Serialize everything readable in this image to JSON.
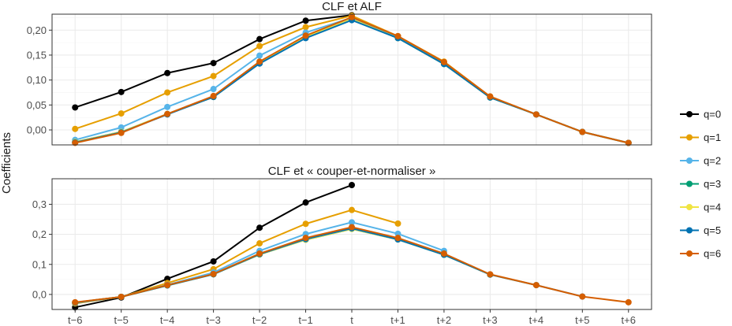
{
  "chart_data": [
    {
      "type": "line",
      "title": "CLF et ALF",
      "xlabel": "",
      "ylabel": "Coefficients",
      "categories": [
        "t−6",
        "t−5",
        "t−4",
        "t−3",
        "t−2",
        "t−1",
        "t",
        "t+1",
        "t+2",
        "t+3",
        "t+4",
        "t+5",
        "t+6"
      ],
      "ylim": [
        -0.03,
        0.232
      ],
      "yticks": [
        0.0,
        0.05,
        0.1,
        0.15,
        0.2
      ],
      "ytick_labels": [
        "0,00",
        "0,05",
        "0,10",
        "0,15",
        "0,20"
      ],
      "grid": true,
      "series": [
        {
          "name": "q=0",
          "values": [
            0.045,
            0.076,
            0.114,
            0.134,
            0.182,
            0.219,
            0.23,
            null,
            null,
            null,
            null,
            null,
            null
          ]
        },
        {
          "name": "q=1",
          "values": [
            0.002,
            0.033,
            0.075,
            0.108,
            0.168,
            0.206,
            0.229,
            0.188,
            0.137,
            0.067,
            0.031,
            -0.004,
            -0.026
          ]
        },
        {
          "name": "q=2",
          "values": [
            -0.02,
            0.005,
            0.046,
            0.082,
            0.149,
            0.195,
            0.225,
            0.185,
            0.133,
            0.066,
            0.031,
            -0.004,
            -0.026
          ]
        },
        {
          "name": "q=3",
          "values": [
            -0.024,
            -0.004,
            0.032,
            0.066,
            0.134,
            0.186,
            0.222,
            0.184,
            0.132,
            0.065,
            0.031,
            -0.004,
            -0.026
          ]
        },
        {
          "name": "q=4",
          "values": [
            -0.024,
            -0.004,
            0.032,
            0.066,
            0.134,
            0.186,
            0.222,
            0.184,
            0.132,
            0.065,
            0.031,
            -0.004,
            -0.026
          ]
        },
        {
          "name": "q=5",
          "values": [
            -0.025,
            -0.005,
            0.031,
            0.066,
            0.133,
            0.184,
            0.22,
            0.184,
            0.132,
            0.065,
            0.031,
            -0.004,
            -0.026
          ]
        },
        {
          "name": "q=6",
          "values": [
            -0.026,
            -0.006,
            0.032,
            0.068,
            0.137,
            0.189,
            0.226,
            0.188,
            0.136,
            0.067,
            0.031,
            -0.004,
            -0.026
          ]
        }
      ]
    },
    {
      "type": "line",
      "title": "CLF et « couper-et-normaliser »",
      "xlabel": "",
      "ylabel": "Coefficients",
      "categories": [
        "t−6",
        "t−5",
        "t−4",
        "t−3",
        "t−2",
        "t−1",
        "t",
        "t+1",
        "t+2",
        "t+3",
        "t+4",
        "t+5",
        "t+6"
      ],
      "ylim": [
        -0.05,
        0.385
      ],
      "yticks": [
        0.0,
        0.1,
        0.2,
        0.3
      ],
      "ytick_labels": [
        "0,0",
        "0,1",
        "0,2",
        "0,3"
      ],
      "grid": true,
      "series": [
        {
          "name": "q=0",
          "values": [
            -0.043,
            -0.01,
            0.052,
            0.11,
            0.222,
            0.306,
            0.364,
            null,
            null,
            null,
            null,
            null,
            null
          ]
        },
        {
          "name": "q=1",
          "values": [
            -0.03,
            -0.008,
            0.038,
            0.084,
            0.17,
            0.235,
            0.281,
            0.236,
            null,
            null,
            null,
            null,
            null
          ]
        },
        {
          "name": "q=2",
          "values": [
            -0.028,
            -0.008,
            0.032,
            0.073,
            0.145,
            0.201,
            0.24,
            0.202,
            0.145,
            null,
            null,
            null,
            null
          ]
        },
        {
          "name": "q=3",
          "values": [
            -0.027,
            -0.008,
            0.03,
            0.067,
            0.133,
            0.182,
            0.218,
            0.183,
            0.132,
            0.066,
            null,
            null,
            null
          ]
        },
        {
          "name": "q=4",
          "values": [
            -0.027,
            -0.008,
            0.03,
            0.067,
            0.133,
            0.182,
            0.218,
            0.183,
            0.132,
            0.066,
            0.031,
            null,
            null
          ]
        },
        {
          "name": "q=5",
          "values": [
            -0.027,
            -0.008,
            0.03,
            0.067,
            0.134,
            0.184,
            0.22,
            0.183,
            0.132,
            0.066,
            0.031,
            -0.007,
            null
          ]
        },
        {
          "name": "q=6",
          "values": [
            -0.026,
            -0.008,
            0.031,
            0.068,
            0.136,
            0.188,
            0.224,
            0.188,
            0.136,
            0.067,
            0.031,
            -0.007,
            -0.026
          ]
        }
      ]
    }
  ],
  "legend": {
    "items": [
      {
        "label": "q=0",
        "color": "#000000"
      },
      {
        "label": "q=1",
        "color": "#E69F00"
      },
      {
        "label": "q=2",
        "color": "#56B4E9"
      },
      {
        "label": "q=3",
        "color": "#009E73"
      },
      {
        "label": "q=4",
        "color": "#F0E442"
      },
      {
        "label": "q=5",
        "color": "#0072B2"
      },
      {
        "label": "q=6",
        "color": "#D55E00"
      }
    ]
  },
  "y_axis_title": "Coefficients"
}
